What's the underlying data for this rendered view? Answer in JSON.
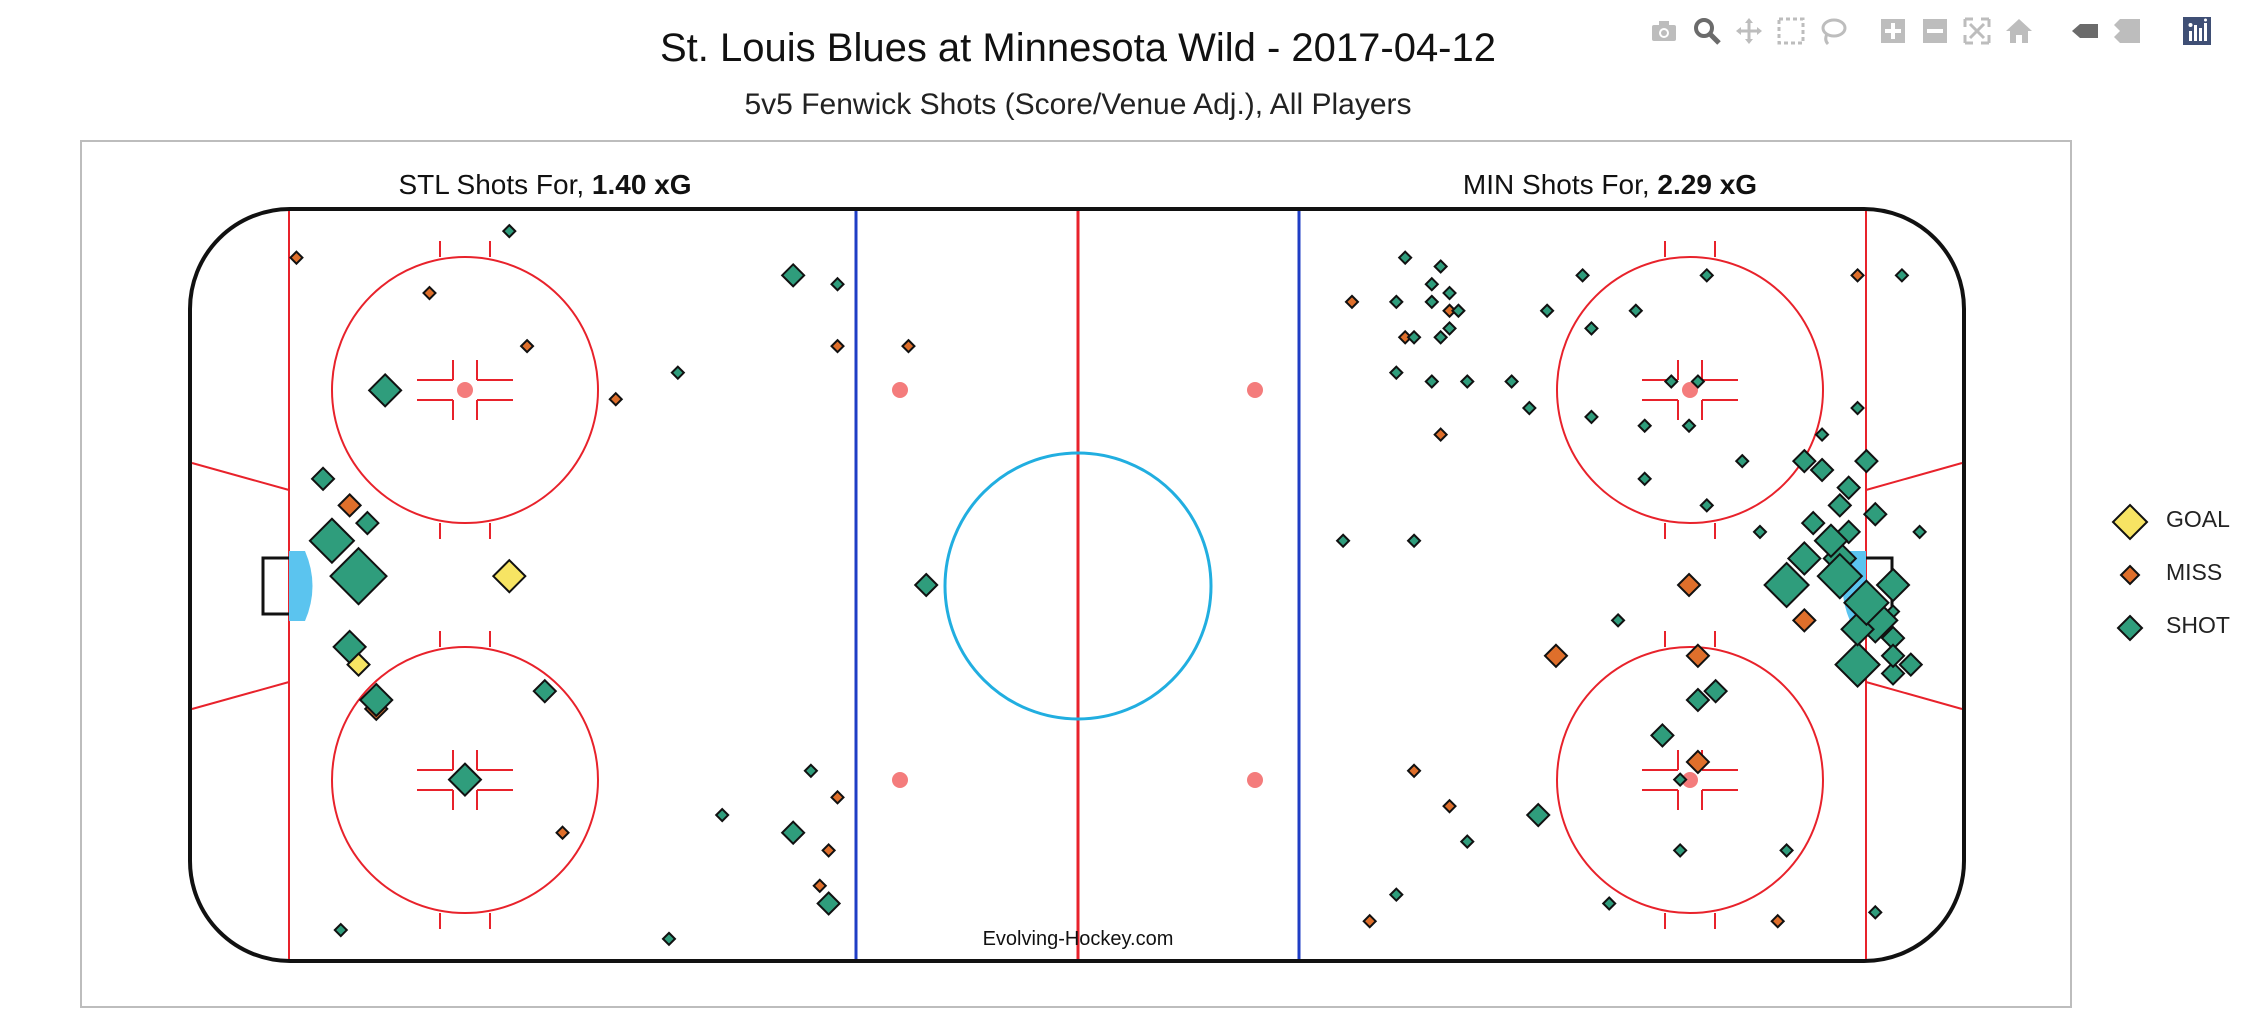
{
  "header": {
    "title": "St. Louis Blues at Minnesota Wild - 2017-04-12",
    "subtitle": "5v5 Fenwick Shots (Score/Venue Adj.), All Players"
  },
  "toolbar": {
    "buttons": [
      "camera-icon",
      "zoom-icon",
      "pan-icon",
      "box-select-icon",
      "lasso-select-icon",
      "zoom-in-icon",
      "zoom-out-icon",
      "autoscale-icon",
      "reset-axes-icon",
      "spike-lines-icon",
      "compare-data-icon",
      "plotly-logo-icon"
    ]
  },
  "chart": {
    "left_label": {
      "prefix": "STL Shots For, ",
      "xg": "1.40 xG"
    },
    "right_label": {
      "prefix": "MIN Shots For, ",
      "xg": "2.29 xG"
    },
    "watermark": "Evolving-Hockey.com"
  },
  "colors": {
    "GOAL": "#f7e463",
    "MISS": "#df6f2b",
    "SHOT": "#2f9d7c",
    "red_line": "#e8222b",
    "blue_line": "#1f3ec5",
    "center_circle": "#21aee0",
    "crease": "#5bc4ef",
    "dot": "#f47c7c"
  },
  "legend": [
    {
      "label": "GOAL",
      "type": "GOAL"
    },
    {
      "label": "MISS",
      "type": "MISS"
    },
    {
      "label": "SHOT",
      "type": "SHOT"
    }
  ],
  "chart_data": {
    "type": "scatter",
    "x_range": [
      -100,
      100
    ],
    "y_range": [
      -42.5,
      42.5
    ],
    "series": [
      {
        "name": "GOAL",
        "points": [
          [
            -81,
            -9,
            2
          ],
          [
            -64,
            1,
            3
          ]
        ]
      },
      {
        "name": "MISS",
        "points": [
          [
            -88,
            37,
            1
          ],
          [
            -73,
            33,
            1
          ],
          [
            -52,
            21,
            1
          ],
          [
            -62,
            27,
            1
          ],
          [
            -27,
            27,
            1
          ],
          [
            -19,
            27,
            1
          ],
          [
            -82,
            9,
            2
          ],
          [
            -79,
            -14,
            2
          ],
          [
            -58,
            -28,
            1
          ],
          [
            -27,
            -24,
            1
          ],
          [
            -28,
            -30,
            1
          ],
          [
            -29,
            -34,
            1
          ],
          [
            31,
            32,
            1
          ],
          [
            37,
            28,
            1
          ],
          [
            42,
            31,
            1
          ],
          [
            41,
            17,
            1
          ],
          [
            69,
            0,
            2
          ],
          [
            70,
            -8,
            2
          ],
          [
            82,
            -4,
            2
          ],
          [
            54,
            -8,
            2
          ],
          [
            70,
            -20,
            2
          ],
          [
            38,
            -21,
            1
          ],
          [
            42,
            -25,
            1
          ],
          [
            88,
            35,
            1
          ],
          [
            33,
            -38,
            1
          ],
          [
            79,
            -38,
            1
          ]
        ]
      },
      {
        "name": "SHOT",
        "points": [
          [
            -78,
            22,
            3
          ],
          [
            -85,
            12,
            2
          ],
          [
            -80,
            7,
            2
          ],
          [
            -84,
            5,
            4
          ],
          [
            -81,
            1,
            5
          ],
          [
            -82,
            -7,
            3
          ],
          [
            -79,
            -13,
            3
          ],
          [
            -69,
            -22,
            3
          ],
          [
            -60,
            -12,
            2
          ],
          [
            -64,
            40,
            1
          ],
          [
            -32,
            35,
            2
          ],
          [
            -27,
            34,
            1
          ],
          [
            -45,
            24,
            1
          ],
          [
            -30,
            -21,
            1
          ],
          [
            -40,
            -26,
            1
          ],
          [
            -32,
            -28,
            2
          ],
          [
            -28,
            -36,
            2
          ],
          [
            -46,
            -40,
            1
          ],
          [
            -83,
            -39,
            1
          ],
          [
            -17,
            0,
            2
          ],
          [
            37,
            37,
            1
          ],
          [
            41,
            36,
            1
          ],
          [
            42,
            33,
            1
          ],
          [
            40,
            34,
            1
          ],
          [
            40,
            32,
            1
          ],
          [
            43,
            31,
            1
          ],
          [
            63,
            31,
            1
          ],
          [
            57,
            35,
            1
          ],
          [
            93,
            35,
            1
          ],
          [
            58,
            29,
            1
          ],
          [
            41,
            28,
            1
          ],
          [
            42,
            29,
            1
          ],
          [
            38,
            28,
            1
          ],
          [
            36,
            32,
            1
          ],
          [
            40,
            23,
            1
          ],
          [
            36,
            24,
            1
          ],
          [
            49,
            23,
            1
          ],
          [
            69,
            18,
            1
          ],
          [
            75,
            14,
            1
          ],
          [
            64,
            12,
            1
          ],
          [
            58,
            19,
            1
          ],
          [
            71,
            9,
            1
          ],
          [
            77,
            6,
            1
          ],
          [
            83,
            7,
            2
          ],
          [
            89,
            14,
            2
          ],
          [
            84,
            13,
            2
          ],
          [
            87,
            11,
            2
          ],
          [
            90,
            8,
            2
          ],
          [
            86,
            3,
            2
          ],
          [
            86,
            3,
            3
          ],
          [
            87,
            6,
            2
          ],
          [
            92,
            -3,
            1
          ],
          [
            80,
            0,
            4
          ],
          [
            92,
            0,
            3
          ],
          [
            82,
            3,
            3
          ],
          [
            85,
            5,
            3
          ],
          [
            86,
            1,
            4
          ],
          [
            90,
            -4,
            4
          ],
          [
            92,
            -6,
            2
          ],
          [
            92,
            -10,
            2
          ],
          [
            88,
            -9,
            4
          ],
          [
            30,
            5,
            1
          ],
          [
            38,
            5,
            1
          ],
          [
            61,
            -4,
            1
          ],
          [
            70,
            -13,
            2
          ],
          [
            72,
            -12,
            2
          ],
          [
            66,
            -17,
            2
          ],
          [
            68,
            -22,
            1
          ],
          [
            68,
            -30,
            1
          ],
          [
            80,
            -30,
            1
          ],
          [
            90,
            -37,
            1
          ],
          [
            60,
            -36,
            1
          ],
          [
            36,
            -35,
            1
          ],
          [
            44,
            -29,
            1
          ],
          [
            52,
            -26,
            2
          ],
          [
            71,
            35,
            1
          ],
          [
            44,
            23,
            1
          ],
          [
            67,
            23,
            1
          ],
          [
            51,
            20,
            1
          ],
          [
            64,
            18,
            1
          ],
          [
            88,
            20,
            1
          ],
          [
            84,
            17,
            1
          ],
          [
            82,
            14,
            2
          ],
          [
            86,
            9,
            2
          ],
          [
            92,
            -8,
            2
          ],
          [
            94,
            -9,
            2
          ],
          [
            88,
            -5,
            3
          ],
          [
            95,
            6,
            1
          ],
          [
            89,
            -2,
            4
          ],
          [
            70,
            23,
            1
          ],
          [
            53,
            31,
            1
          ]
        ]
      }
    ]
  }
}
